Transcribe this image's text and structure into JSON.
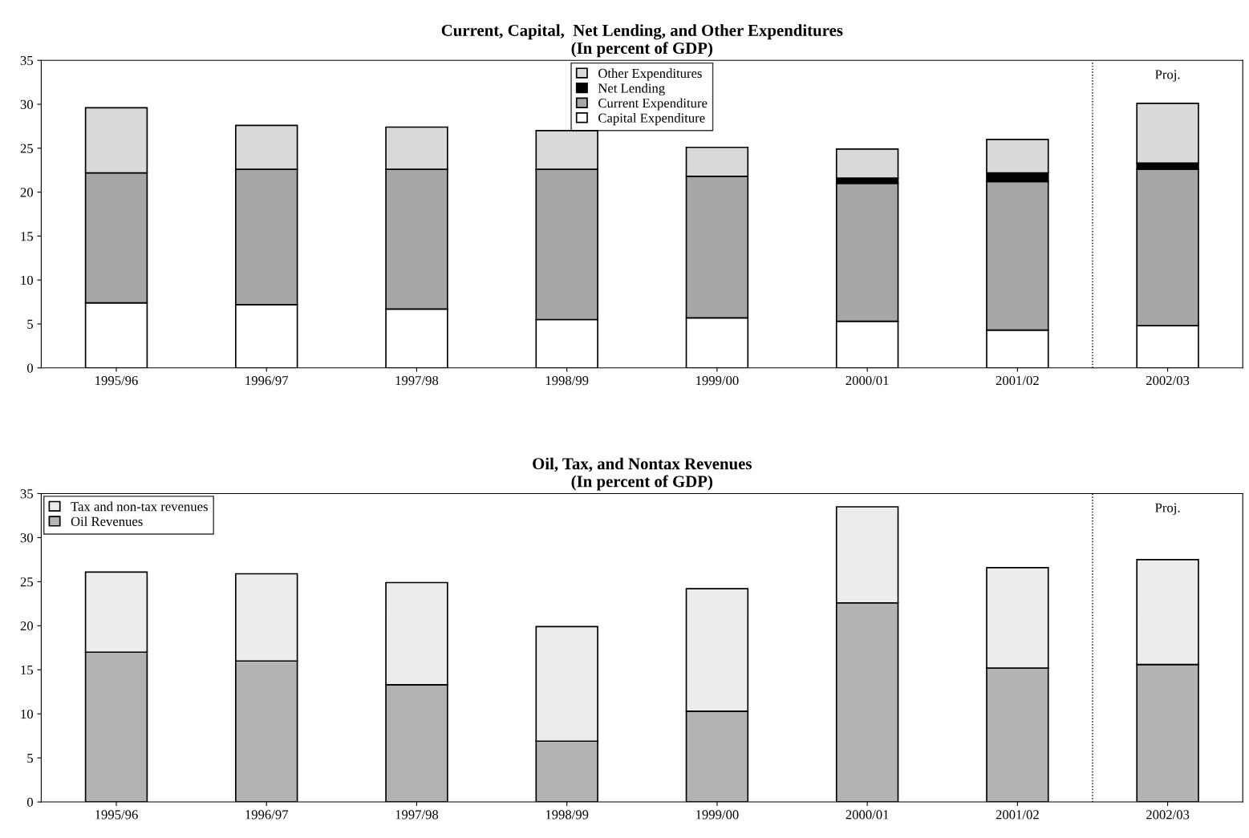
{
  "chart_data": [
    {
      "type": "bar",
      "title": "Current, Capital,  Net Lending, and Other Expenditures\n(In percent of GDP)",
      "stacked": true,
      "categories": [
        "1995/96",
        "1996/97",
        "1997/98",
        "1998/99",
        "1999/00",
        "2000/01",
        "2001/02",
        "2002/03"
      ],
      "series": [
        {
          "name": "Capital Expenditure",
          "color": "#ffffff",
          "values": [
            7.4,
            7.2,
            6.7,
            5.5,
            5.7,
            5.3,
            4.3,
            4.8
          ]
        },
        {
          "name": "Current Expenditure",
          "color": "#a6a6a6",
          "values": [
            14.8,
            15.4,
            15.9,
            17.1,
            16.1,
            15.7,
            16.9,
            17.8
          ]
        },
        {
          "name": "Net Lending",
          "color": "#000000",
          "values": [
            0,
            0,
            0,
            0,
            0,
            0.6,
            1.0,
            0.7
          ]
        },
        {
          "name": "Other Expenditures",
          "color": "#d9d9d9",
          "values": [
            7.4,
            5.0,
            4.8,
            4.4,
            3.3,
            3.3,
            3.8,
            6.8
          ]
        }
      ],
      "ylim": [
        0,
        35
      ],
      "yticks": [
        0,
        5,
        10,
        15,
        20,
        25,
        30,
        35
      ],
      "legend": "top",
      "annotations": [
        "Proj."
      ]
    },
    {
      "type": "bar",
      "title": "Oil, Tax, and Nontax Revenues\n(In percent of GDP)",
      "stacked": true,
      "categories": [
        "1995/96",
        "1996/97",
        "1997/98",
        "1998/99",
        "1999/00",
        "2000/01",
        "2001/02",
        "2002/03"
      ],
      "series": [
        {
          "name": "Oil Revenues",
          "color": "#b3b3b3",
          "values": [
            17.0,
            16.0,
            13.3,
            6.9,
            10.3,
            22.6,
            15.2,
            15.6
          ]
        },
        {
          "name": "Tax and non-tax revenues",
          "color": "#ececec",
          "values": [
            9.1,
            9.9,
            11.6,
            13.0,
            13.9,
            10.9,
            11.4,
            11.9
          ]
        }
      ],
      "ylim": [
        0,
        35
      ],
      "yticks": [
        0,
        5,
        10,
        15,
        20,
        25,
        30,
        35
      ],
      "legend": "top left",
      "annotations": [
        "Proj."
      ]
    }
  ]
}
